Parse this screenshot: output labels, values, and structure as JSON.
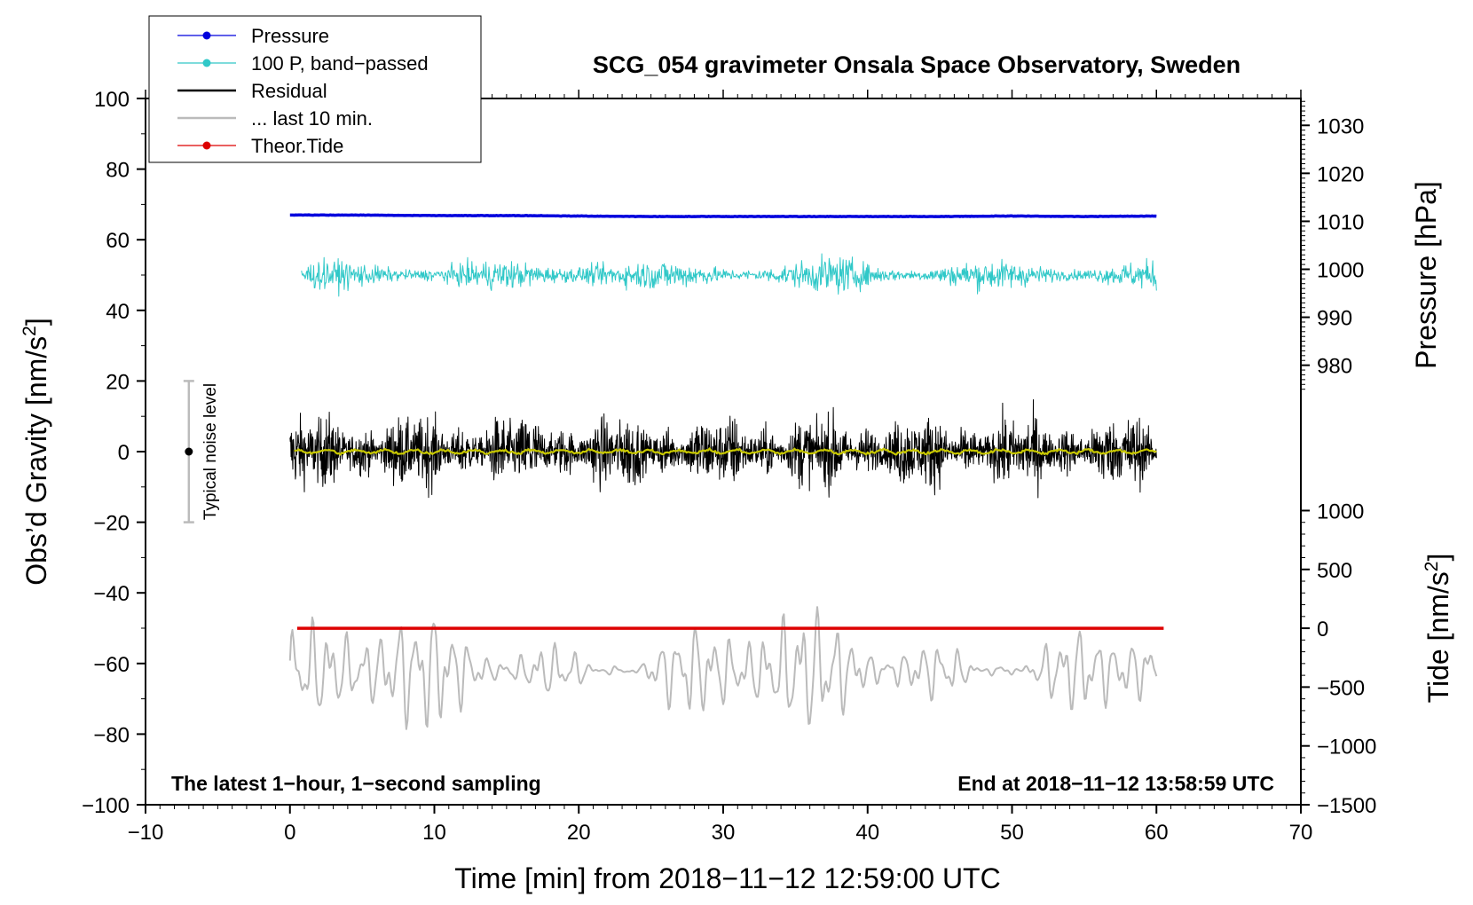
{
  "chart_data": {
    "type": "line",
    "title": "SCG_054 gravimeter Onsala Space Observatory, Sweden",
    "xlabel": "Time [min] from 2018−11−12 12:59:00 UTC",
    "ylabel_main": "Obs’d Gravity [nm/s",
    "ylabel_main_sup": "2",
    "ylabel_main_close": "]",
    "ylabel_pressure": "Pressure [hPa]",
    "ylabel_tide": "Tide [nm/s",
    "ylabel_tide_sup": "2",
    "ylabel_tide_close": "]",
    "xlim": [
      -10,
      70
    ],
    "ylim": [
      -100,
      100
    ],
    "x_ticks": [
      -10,
      0,
      10,
      20,
      30,
      40,
      50,
      60,
      70
    ],
    "x_tick_labels": [
      "−10",
      "0",
      "10",
      "20",
      "30",
      "40",
      "50",
      "60",
      "70"
    ],
    "y_ticks": [
      -100,
      -80,
      -60,
      -40,
      -20,
      0,
      20,
      40,
      60,
      80,
      100
    ],
    "y_tick_labels": [
      "−100",
      "−80",
      "−60",
      "−40",
      "−20",
      "0",
      "20",
      "40",
      "60",
      "80",
      "100"
    ],
    "pressure_axis": {
      "ticks": [
        980,
        990,
        1000,
        1010,
        1020,
        1030
      ],
      "tick_labels": [
        "980",
        "990",
        "1000",
        "1010",
        "1020",
        "1030"
      ],
      "range_hpa": [
        972.3,
        1035.6
      ],
      "maps_to_gravity": [
        14,
        100
      ]
    },
    "tide_axis": {
      "ticks": [
        -1500,
        -1000,
        -500,
        0,
        500,
        1000
      ],
      "tick_labels": [
        "−1500",
        "−1000",
        "−500",
        "0",
        "500",
        "1000"
      ],
      "range_nms2": [
        -1500,
        1000
      ],
      "maps_to_gravity": [
        -100,
        -16.7
      ]
    },
    "legend": {
      "position": "top-left",
      "entries": [
        {
          "label": "Pressure",
          "color": "#0000dd",
          "marker": true
        },
        {
          "label": "100 P, band−passed",
          "color": "#30c8c8",
          "marker": true
        },
        {
          "label": "Residual",
          "color": "#000000",
          "marker": false
        },
        {
          "label": "... last 10 min.",
          "color": "#bbbbbb",
          "marker": false
        },
        {
          "label": "Theor.Tide",
          "color": "#dd0000",
          "marker": true
        }
      ]
    },
    "series": [
      {
        "name": "Pressure",
        "color": "#0000dd",
        "x_range": [
          0,
          60
        ],
        "values_hpa": [
          1011.3,
          1011.3,
          1011.2,
          1011.2,
          1011.1,
          1011.0,
          1011.0,
          1011.0,
          1011.0,
          1011.0,
          1011.1,
          1011.0,
          1011.1
        ]
      },
      {
        "name": "100 P, band−passed",
        "color": "#30c8c8",
        "x_range": [
          0.8,
          60
        ],
        "baseline": 50,
        "amplitude": 3.5
      },
      {
        "name": "Residual",
        "color": "#000000",
        "x_range": [
          0,
          60
        ],
        "baseline": 0,
        "amplitude": 10
      },
      {
        "name": "Residual smoothed",
        "color": "#c8c800",
        "x_range": [
          0.3,
          60
        ],
        "baseline": 0,
        "amplitude": 0.8
      },
      {
        "name": "... last 10 min.",
        "color": "#bbbbbb",
        "x_range": [
          0,
          60
        ],
        "baseline": -62,
        "amplitude": 7
      },
      {
        "name": "Theor.Tide",
        "color": "#dd0000",
        "x_range": [
          0.5,
          60.5
        ],
        "values_nms2": [
          0,
          0,
          0,
          0,
          0,
          0,
          0
        ]
      }
    ],
    "annotations": {
      "noise_label": "Typical noise level",
      "noise_x": -7,
      "noise_range": [
        -20,
        20
      ],
      "bottom_left": "The latest 1−hour, 1−second sampling",
      "bottom_right": "End at 2018−11−12 13:58:59 UTC"
    }
  },
  "colors": {
    "pressure": "#0000dd",
    "bandpassed": "#30c8c8",
    "residual": "#000000",
    "smoothed": "#c8c800",
    "last10": "#bbbbbb",
    "tide": "#dd0000",
    "noise": "#bbbbbb"
  }
}
